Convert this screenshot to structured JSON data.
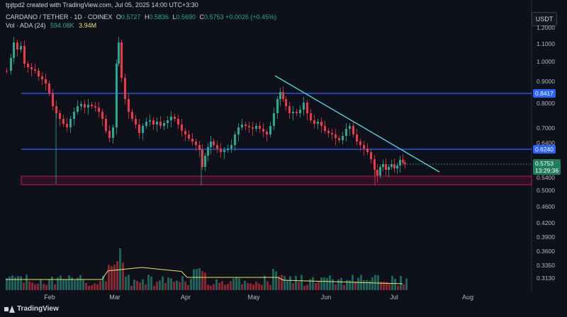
{
  "header": {
    "credit": "tpjtpd2 created with TradingView.com, Jul 05, 2025 14:00 UTC+3:30"
  },
  "legend": {
    "symbol": "CARDANO / TETHER · 1D · COINEX",
    "open_label": "O",
    "open": "0.5727",
    "high_label": "H",
    "high": "0.5836",
    "low_label": "L",
    "low": "0.5690",
    "close_label": "C",
    "close": "0.5753",
    "change": "+0.0026 (+0.45%)",
    "volume_label": "Vol · ADA (24)",
    "volume_value": "594.08K",
    "volume_ma": "3.94M"
  },
  "currency_button": "USDT",
  "price_axis": [
    "1.2000",
    "1.1000",
    "1.0000",
    "0.9000",
    "0.8000",
    "0.7000",
    "0.6400",
    "0.5400",
    "0.5000",
    "0.4600",
    "0.4200",
    "0.3900",
    "0.3600",
    "0.3350",
    "0.3130"
  ],
  "price_tags": {
    "resistance": "0.8417",
    "support": "0.6240",
    "last_price": "0.5753",
    "countdown": "13:29:36"
  },
  "time_axis": [
    "Feb",
    "Mar",
    "Apr",
    "May",
    "Jun",
    "Jul",
    "Aug"
  ],
  "branding": "TradingView",
  "colors": {
    "up": "#22ab94",
    "down": "#f23645",
    "level_line": "#2962ff",
    "trend_line": "#4dd0e1",
    "zone": "#c2185b",
    "volume_ma": "#e8e36a"
  },
  "chart_data": {
    "type": "candlestick",
    "title": "CARDANO / TETHER · 1D · COINEX",
    "y_scale": "log",
    "ylim": [
      0.3,
      1.25
    ],
    "x_categories": [
      "Feb",
      "Mar",
      "Apr",
      "May",
      "Jun",
      "Jul",
      "Aug"
    ],
    "horizontal_levels": [
      0.8417,
      0.624
    ],
    "support_zone": [
      0.5155,
      0.54
    ],
    "trendline": {
      "from": [
        "May 10",
        0.88
      ],
      "to": [
        "Jul 15",
        0.555
      ]
    },
    "last": {
      "open": 0.5727,
      "high": 0.5836,
      "low": 0.569,
      "close": 0.5753
    },
    "volume": {
      "last": "594.08K",
      "ma24": "3.94M"
    }
  }
}
